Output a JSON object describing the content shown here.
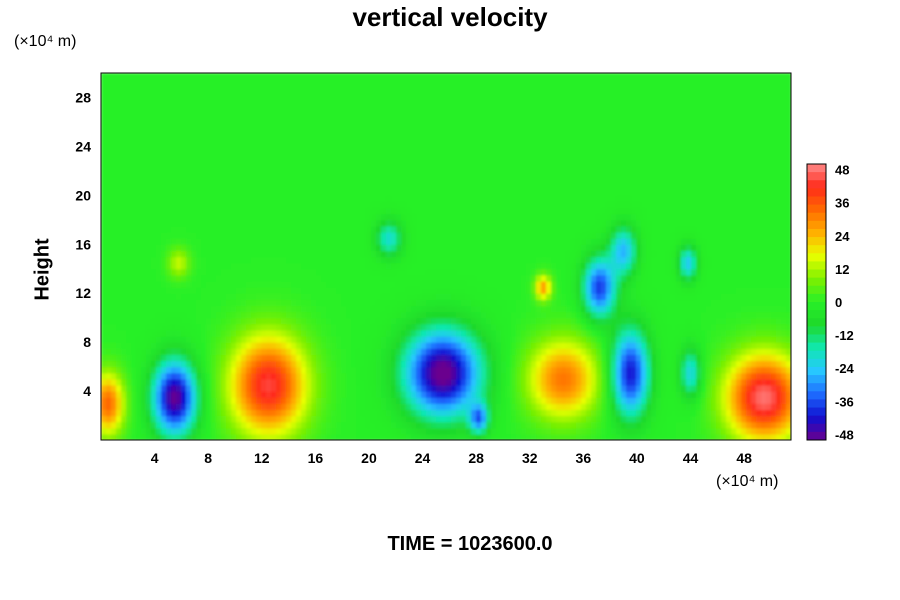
{
  "chart_data": {
    "type": "heatmap",
    "title": "vertical velocity",
    "xlabel": "",
    "ylabel": "Height",
    "x_units": "(×10⁴ m)",
    "y_units": "(×10⁴ m)",
    "xlim": [
      0,
      51.5
    ],
    "ylim": [
      0,
      30
    ],
    "x_ticks": [
      4,
      8,
      12,
      16,
      20,
      24,
      28,
      32,
      36,
      40,
      44,
      48
    ],
    "y_ticks": [
      4,
      8,
      12,
      16,
      20,
      24,
      28
    ],
    "colorbar": {
      "range": [
        -50,
        50
      ],
      "ticks": [
        48,
        36,
        24,
        12,
        0,
        -12,
        -24,
        -36,
        -48
      ],
      "colormap": [
        "#6a008e",
        "#1010d0",
        "#1e6cff",
        "#27c7ff",
        "#10e8b0",
        "#1ed82a",
        "#28f028",
        "#7ef000",
        "#e8ff00",
        "#ffb000",
        "#ff6a00",
        "#ff2a1a",
        "#ff8c8c"
      ]
    },
    "background_value": 0,
    "features": [
      {
        "x": 49.5,
        "y": 3.5,
        "value": 48,
        "sx": 2.8,
        "sy": 3.5
      },
      {
        "x": 12.5,
        "y": 4.5,
        "value": 44,
        "sx": 2.8,
        "sy": 4.0
      },
      {
        "x": 34.5,
        "y": 5.0,
        "value": 32,
        "sx": 2.6,
        "sy": 3.2
      },
      {
        "x": 0.5,
        "y": 3.0,
        "value": 34,
        "sx": 1.2,
        "sy": 2.5
      },
      {
        "x": 25.5,
        "y": 5.5,
        "value": -52,
        "sx": 2.8,
        "sy": 3.5
      },
      {
        "x": 5.5,
        "y": 3.5,
        "value": -50,
        "sx": 1.6,
        "sy": 3.0
      },
      {
        "x": 39.5,
        "y": 5.5,
        "value": -42,
        "sx": 1.4,
        "sy": 3.5
      },
      {
        "x": 37.2,
        "y": 12.5,
        "value": -38,
        "sx": 1.2,
        "sy": 2.4
      },
      {
        "x": 39.0,
        "y": 15.5,
        "value": -26,
        "sx": 1.0,
        "sy": 2.0
      },
      {
        "x": 43.8,
        "y": 14.5,
        "value": -24,
        "sx": 0.7,
        "sy": 1.4
      },
      {
        "x": 21.5,
        "y": 16.5,
        "value": -20,
        "sx": 1.0,
        "sy": 1.5
      },
      {
        "x": 33.0,
        "y": 12.5,
        "value": 28,
        "sx": 0.6,
        "sy": 1.0
      },
      {
        "x": 5.8,
        "y": 14.5,
        "value": 14,
        "sx": 0.8,
        "sy": 1.2
      },
      {
        "x": 28.2,
        "y": 1.8,
        "value": -30,
        "sx": 0.7,
        "sy": 1.2
      },
      {
        "x": 44.0,
        "y": 5.5,
        "value": -22,
        "sx": 0.8,
        "sy": 2.0
      }
    ]
  },
  "footer": "TIME = 1023600.0"
}
